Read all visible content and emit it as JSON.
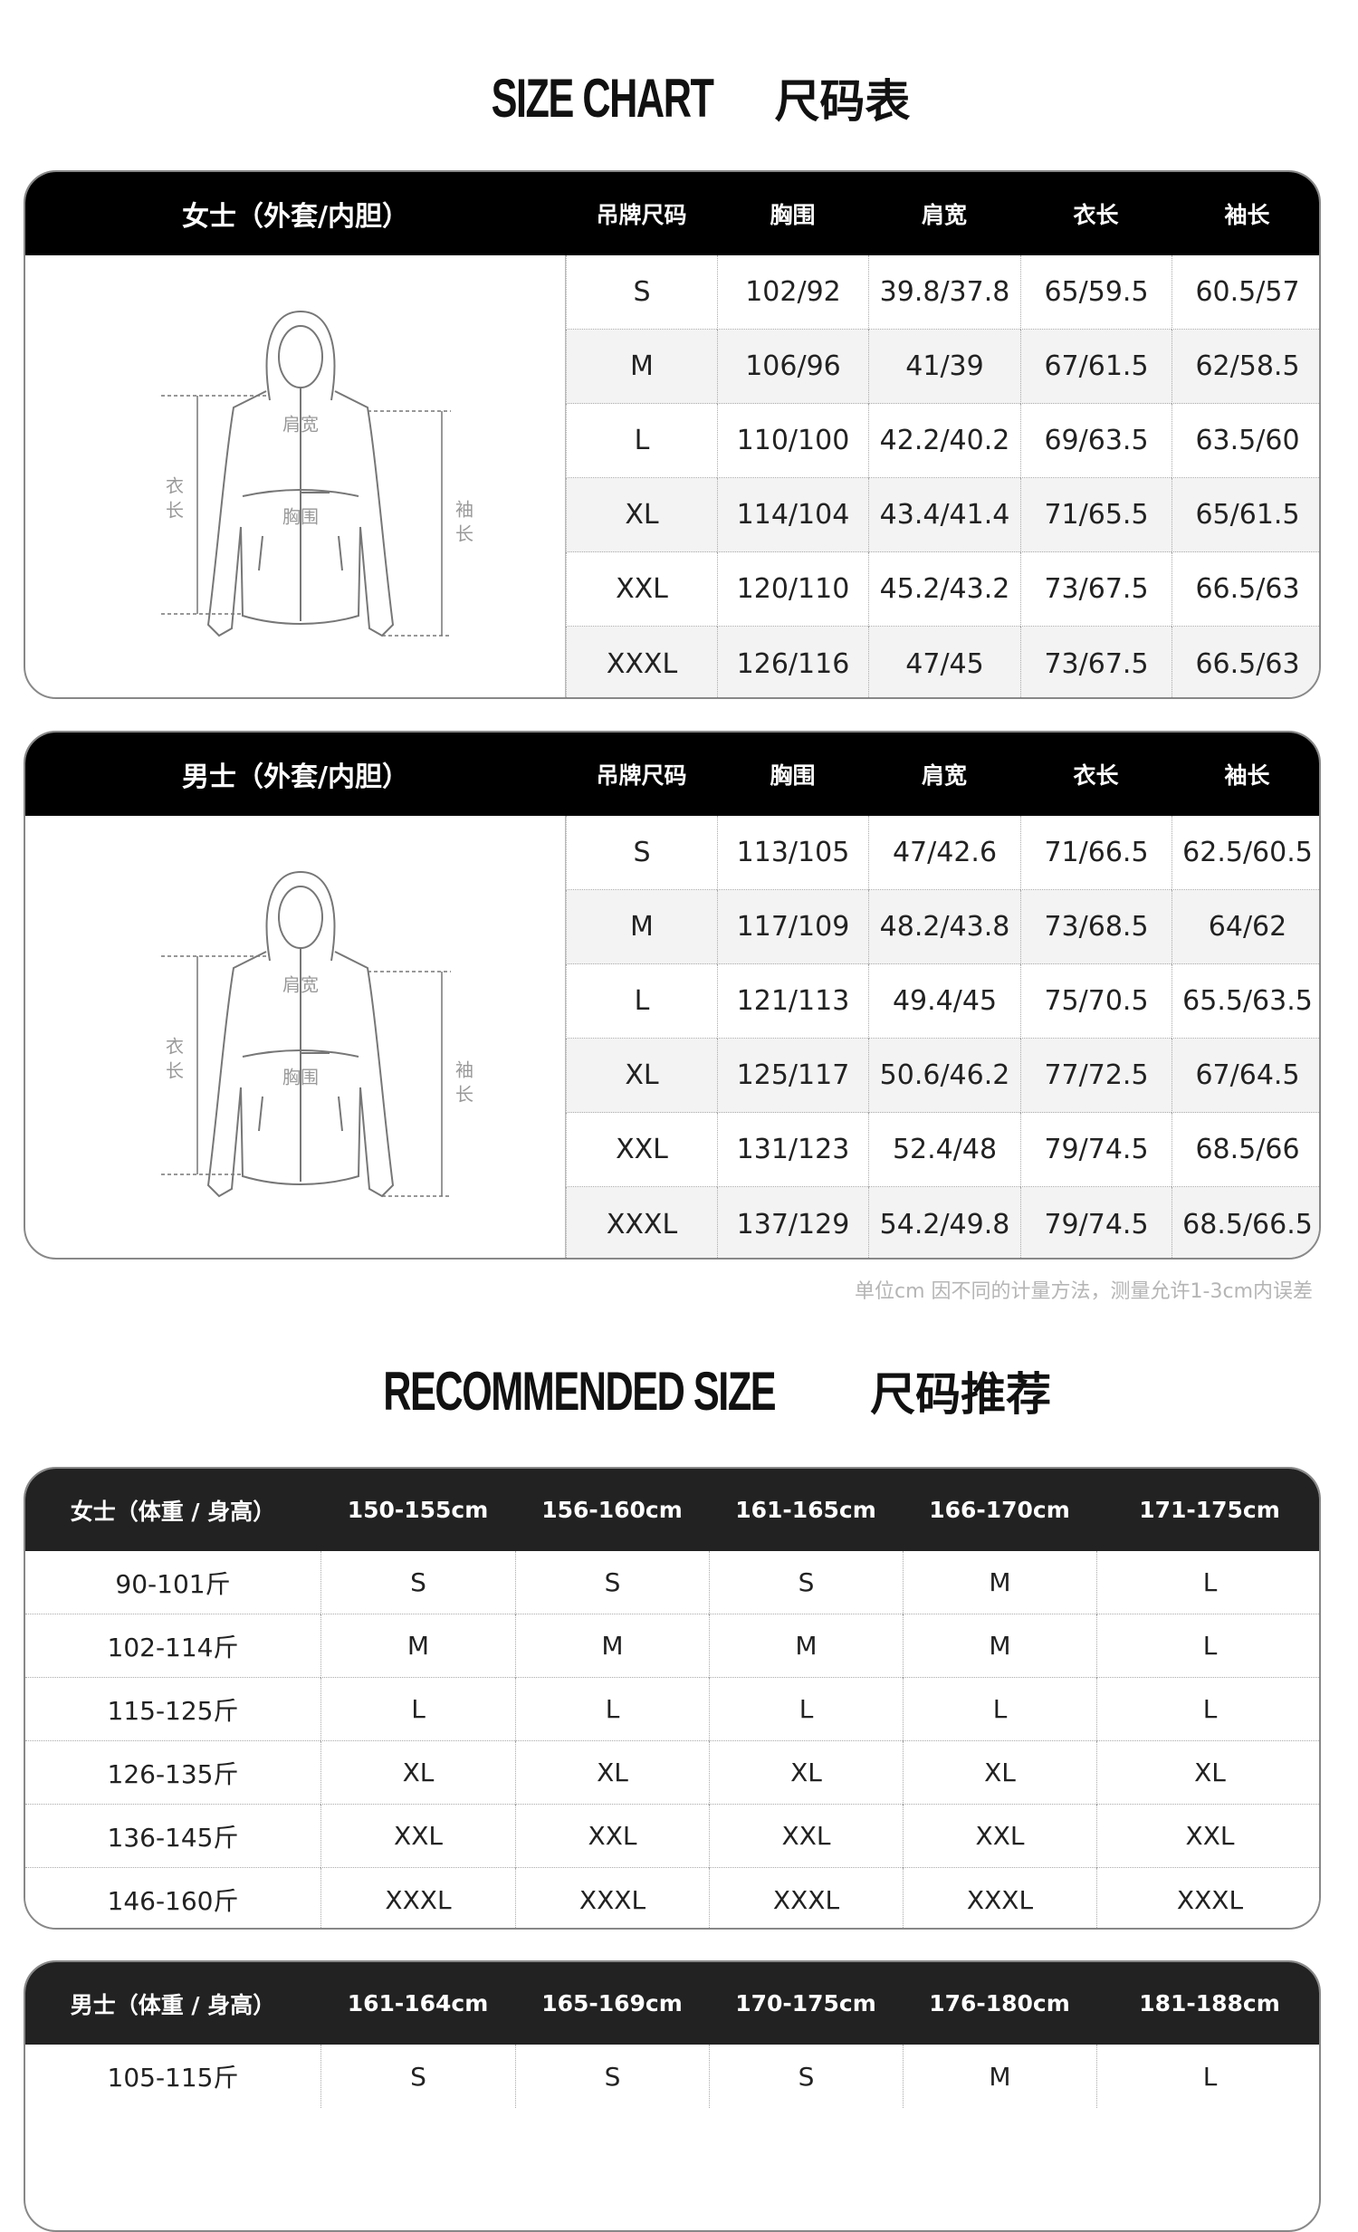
{
  "size_chart": {
    "title_en": "SIZE CHART",
    "title_cn": "尺码表",
    "diagram_labels": {
      "shoulder": "肩宽",
      "chest": "胸围",
      "length": [
        "衣",
        "长"
      ],
      "sleeve": [
        "袖",
        "长"
      ]
    },
    "tables": [
      {
        "header": [
          "女士（外套/内胆）",
          "吊牌尺码",
          "胸围",
          "肩宽",
          "衣长",
          "袖长"
        ],
        "rows": [
          [
            "S",
            "102/92",
            "39.8/37.8",
            "65/59.5",
            "60.5/57"
          ],
          [
            "M",
            "106/96",
            "41/39",
            "67/61.5",
            "62/58.5"
          ],
          [
            "L",
            "110/100",
            "42.2/40.2",
            "69/63.5",
            "63.5/60"
          ],
          [
            "XL",
            "114/104",
            "43.4/41.4",
            "71/65.5",
            "65/61.5"
          ],
          [
            "XXL",
            "120/110",
            "45.2/43.2",
            "73/67.5",
            "66.5/63"
          ],
          [
            "XXXL",
            "126/116",
            "47/45",
            "73/67.5",
            "66.5/63"
          ]
        ]
      },
      {
        "header": [
          "男士（外套/内胆）",
          "吊牌尺码",
          "胸围",
          "肩宽",
          "衣长",
          "袖长"
        ],
        "rows": [
          [
            "S",
            "113/105",
            "47/42.6",
            "71/66.5",
            "62.5/60.5"
          ],
          [
            "M",
            "117/109",
            "48.2/43.8",
            "73/68.5",
            "64/62"
          ],
          [
            "L",
            "121/113",
            "49.4/45",
            "75/70.5",
            "65.5/63.5"
          ],
          [
            "XL",
            "125/117",
            "50.6/46.2",
            "77/72.5",
            "67/64.5"
          ],
          [
            "XXL",
            "131/123",
            "52.4/48",
            "79/74.5",
            "68.5/66"
          ],
          [
            "XXXL",
            "137/129",
            "54.2/49.8",
            "79/74.5",
            "68.5/66.5"
          ]
        ]
      }
    ],
    "note": "单位cm 因不同的计量方法，测量允许1-3cm内误差"
  },
  "recommended": {
    "title_en": "RECOMMENDED SIZE",
    "title_cn": "尺码推荐",
    "tables": [
      {
        "header": [
          "女士（体重 / 身高）",
          "150-155cm",
          "156-160cm",
          "161-165cm",
          "166-170cm",
          "171-175cm"
        ],
        "rows": [
          [
            "90-101斤",
            "S",
            "S",
            "S",
            "M",
            "L"
          ],
          [
            "102-114斤",
            "M",
            "M",
            "M",
            "M",
            "L"
          ],
          [
            "115-125斤",
            "L",
            "L",
            "L",
            "L",
            "L"
          ],
          [
            "126-135斤",
            "XL",
            "XL",
            "XL",
            "XL",
            "XL"
          ],
          [
            "136-145斤",
            "XXL",
            "XXL",
            "XXL",
            "XXL",
            "XXL"
          ],
          [
            "146-160斤",
            "XXXL",
            "XXXL",
            "XXXL",
            "XXXL",
            "XXXL"
          ]
        ]
      },
      {
        "header": [
          "男士（体重 / 身高）",
          "161-164cm",
          "165-169cm",
          "170-175cm",
          "176-180cm",
          "181-188cm"
        ],
        "rows": [
          [
            "105-115斤",
            "S",
            "S",
            "S",
            "M",
            "L"
          ]
        ]
      }
    ]
  }
}
